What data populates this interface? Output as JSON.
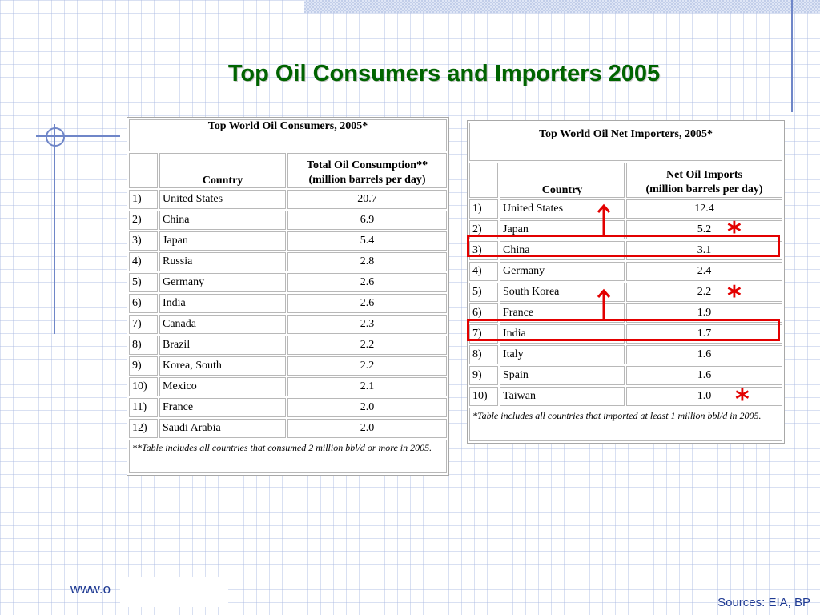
{
  "slide_title": "Top Oil Consumers and Importers 2005",
  "consumers_table": {
    "title": "Top World Oil Consumers, 2005*",
    "headers": [
      "Country",
      "Total Oil Consumption**\n(million barrels per day)"
    ],
    "rows": [
      {
        "rank": "1)",
        "country": "United States",
        "value": "20.7"
      },
      {
        "rank": "2)",
        "country": "China",
        "value": "6.9"
      },
      {
        "rank": "3)",
        "country": "Japan",
        "value": "5.4"
      },
      {
        "rank": "4)",
        "country": "Russia",
        "value": "2.8"
      },
      {
        "rank": "5)",
        "country": "Germany",
        "value": "2.6"
      },
      {
        "rank": "6)",
        "country": "India",
        "value": "2.6"
      },
      {
        "rank": "7)",
        "country": "Canada",
        "value": "2.3"
      },
      {
        "rank": "8)",
        "country": "Brazil",
        "value": "2.2"
      },
      {
        "rank": "9)",
        "country": "Korea, South",
        "value": "2.2"
      },
      {
        "rank": "10)",
        "country": "Mexico",
        "value": "2.1"
      },
      {
        "rank": "11)",
        "country": "France",
        "value": "2.0"
      },
      {
        "rank": "12)",
        "country": "Saudi Arabia",
        "value": "2.0"
      }
    ],
    "note": "**Table includes all countries that consumed 2 million bbl/d or more in 2005."
  },
  "importers_table": {
    "title": "Top World Oil Net Importers, 2005*",
    "headers": [
      "Country",
      "Net Oil Imports\n(million barrels per day)"
    ],
    "rows": [
      {
        "rank": "1)",
        "country": "United States",
        "value": "12.4"
      },
      {
        "rank": "2)",
        "country": "Japan",
        "value": "5.2"
      },
      {
        "rank": "3)",
        "country": "China",
        "value": "3.1"
      },
      {
        "rank": "4)",
        "country": "Germany",
        "value": "2.4"
      },
      {
        "rank": "5)",
        "country": "South Korea",
        "value": "2.2"
      },
      {
        "rank": "6)",
        "country": "France",
        "value": "1.9"
      },
      {
        "rank": "7)",
        "country": "India",
        "value": "1.7"
      },
      {
        "rank": "8)",
        "country": "Italy",
        "value": "1.6"
      },
      {
        "rank": "9)",
        "country": "Spain",
        "value": "1.6"
      },
      {
        "rank": "10)",
        "country": "Taiwan",
        "value": "1.0"
      }
    ],
    "note": "*Table includes all countries that imported at least 1 million bbl/d in 2005."
  },
  "annotations": {
    "asterisk": "*",
    "highlight_color": "#e30000",
    "highlighted_rows": [
      "China",
      "India"
    ]
  },
  "footer": {
    "url_fragment": "www.o",
    "sources": "Sources: EIA, BP"
  },
  "colors": {
    "title": "#006400",
    "decor": "#6f86c8",
    "footer_text": "#1f3a93"
  }
}
